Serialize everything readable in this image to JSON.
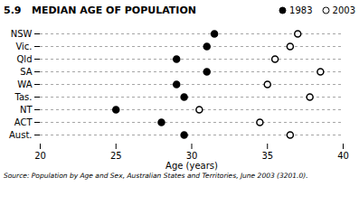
{
  "chart_data": {
    "type": "dot",
    "title": "5.9   MEDIAN AGE OF POPULATION",
    "xlabel": "Age (years)",
    "source": "Source: Population by Age and Sex, Australian States and Territories, June 2003 (3201.0).",
    "categories": [
      "NSW",
      "Vic.",
      "Qld",
      "SA",
      "WA",
      "Tas.",
      "NT",
      "ACT",
      "Aust."
    ],
    "series": [
      {
        "name": "1983",
        "color": "black",
        "marker": "circle",
        "values": [
          31.5,
          31.0,
          29.0,
          31.0,
          29.0,
          29.5,
          25.0,
          28.0,
          29.5
        ]
      },
      {
        "name": "2003",
        "color": "black",
        "marker": "circle_open",
        "values": [
          37.0,
          36.5,
          35.5,
          38.5,
          35.0,
          37.8,
          30.5,
          34.5,
          36.5
        ]
      }
    ],
    "xlim": [
      20,
      40
    ],
    "xticks": [
      20,
      25,
      30,
      35,
      40
    ],
    "grid": true,
    "legend": "top right"
  }
}
